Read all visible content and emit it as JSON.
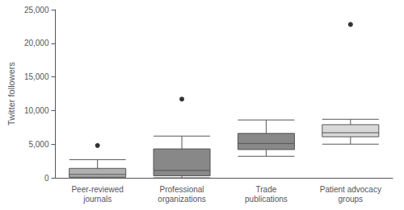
{
  "chart_data": {
    "type": "box",
    "categories": [
      "Peer-reviewed\njournals",
      "Professional\norganizations",
      "Trade\npublications",
      "Patient advocacy\ngroups"
    ],
    "values": [
      {
        "whislo": 0,
        "q1": 100,
        "med": 500,
        "q3": 1400,
        "whishi": 2700,
        "fliers": [
          4800
        ]
      },
      {
        "whislo": 0,
        "q1": 300,
        "med": 1100,
        "q3": 4300,
        "whishi": 6200,
        "fliers": [
          11700
        ]
      },
      {
        "whislo": 3200,
        "q1": 4200,
        "med": 5100,
        "q3": 6600,
        "whishi": 8600,
        "fliers": []
      },
      {
        "whislo": 5000,
        "q1": 6100,
        "med": 6700,
        "q3": 7900,
        "whishi": 8700,
        "fliers": [
          22800
        ]
      }
    ],
    "colors": [
      "#b0b0b0",
      "#888888",
      "#888888",
      "#d8d8d8"
    ],
    "ylabel": "Twitter followers",
    "ylim": [
      0,
      25000
    ],
    "yticks": [
      0,
      {
        "value": 5000,
        "label": "5,000"
      },
      {
        "value": 10000,
        "label": "10,000"
      },
      {
        "value": 15000,
        "label": "15,000"
      },
      {
        "value": 20000,
        "label": "20,000"
      },
      {
        "value": 25000,
        "label": "25,000"
      }
    ],
    "grid": false
  }
}
